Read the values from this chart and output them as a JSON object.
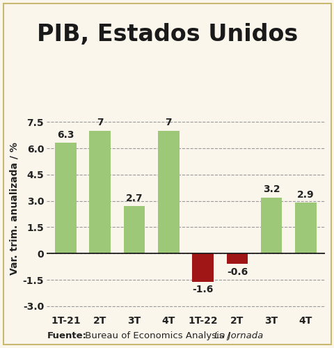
{
  "title": "PIB, Estados Unidos",
  "ylabel": "Var. trim. anualizada / %",
  "categories": [
    "1T-21",
    "2T",
    "3T",
    "4T",
    "1T-22",
    "2T",
    "3T",
    "4T"
  ],
  "values": [
    6.3,
    7.0,
    2.7,
    7.0,
    -1.6,
    -0.6,
    3.2,
    2.9
  ],
  "bar_colors": [
    "#9dc878",
    "#9dc878",
    "#9dc878",
    "#9dc878",
    "#a01515",
    "#a01515",
    "#9dc878",
    "#9dc878"
  ],
  "value_labels": [
    "6.3",
    "7",
    "2.7",
    "7",
    "-1.6",
    "-0.6",
    "3.2",
    "2.9"
  ],
  "label_offsets": [
    0.18,
    0.18,
    0.18,
    0.18,
    -0.18,
    -0.18,
    0.18,
    0.18
  ],
  "yticks": [
    -3.0,
    -1.5,
    0,
    1.5,
    3.0,
    4.5,
    6.0,
    7.5
  ],
  "ytick_labels": [
    "-3.0",
    "-1.5",
    "0",
    "1.5",
    "3.0",
    "4.5",
    "6.0",
    "7.5"
  ],
  "ylim": [
    -3.4,
    8.5
  ],
  "background_color": "#faf6ec",
  "border_color": "#c8b870",
  "title_fontsize": 24,
  "axis_fontsize": 10,
  "label_fontsize": 10,
  "footer_fontsize": 9.5,
  "bar_width": 0.62
}
